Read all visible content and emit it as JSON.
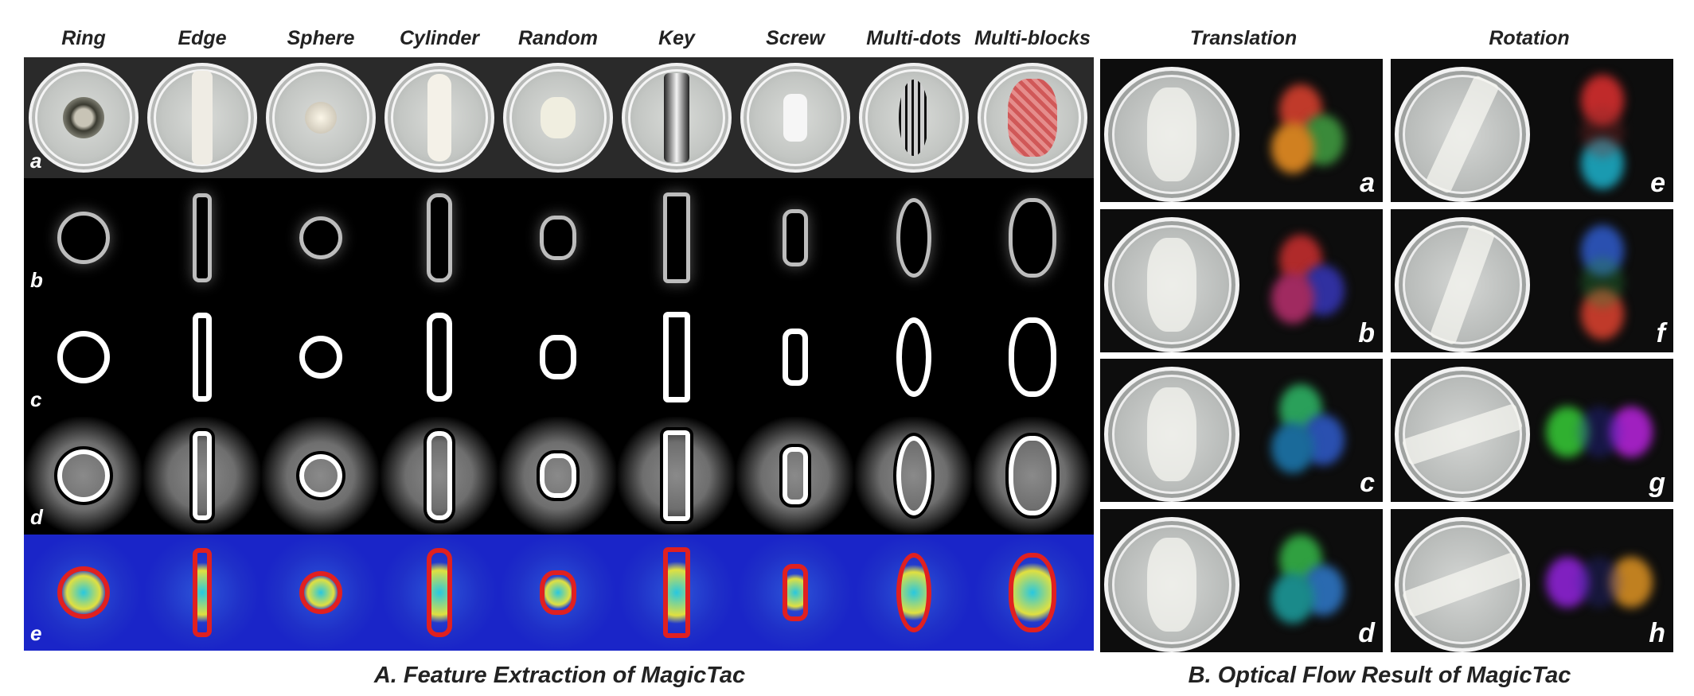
{
  "panel_a": {
    "column_headers": [
      "Ring",
      "Edge",
      "Sphere",
      "Cylinder",
      "Random",
      "Key",
      "Screw",
      "Multi-dots",
      "Multi-blocks"
    ],
    "row_labels": [
      "a",
      "b",
      "c",
      "d",
      "e"
    ],
    "caption": "A. Feature Extraction of MagicTac"
  },
  "panel_b": {
    "column_headers": [
      "Translation",
      "Rotation"
    ],
    "translation_labels": [
      "a",
      "b",
      "c",
      "d"
    ],
    "rotation_labels": [
      "e",
      "f",
      "g",
      "h"
    ],
    "caption": "B. Optical Flow Result of MagicTac"
  },
  "colors": {
    "heatmap_background": "#1a25c8",
    "panel_background": "#000000"
  }
}
